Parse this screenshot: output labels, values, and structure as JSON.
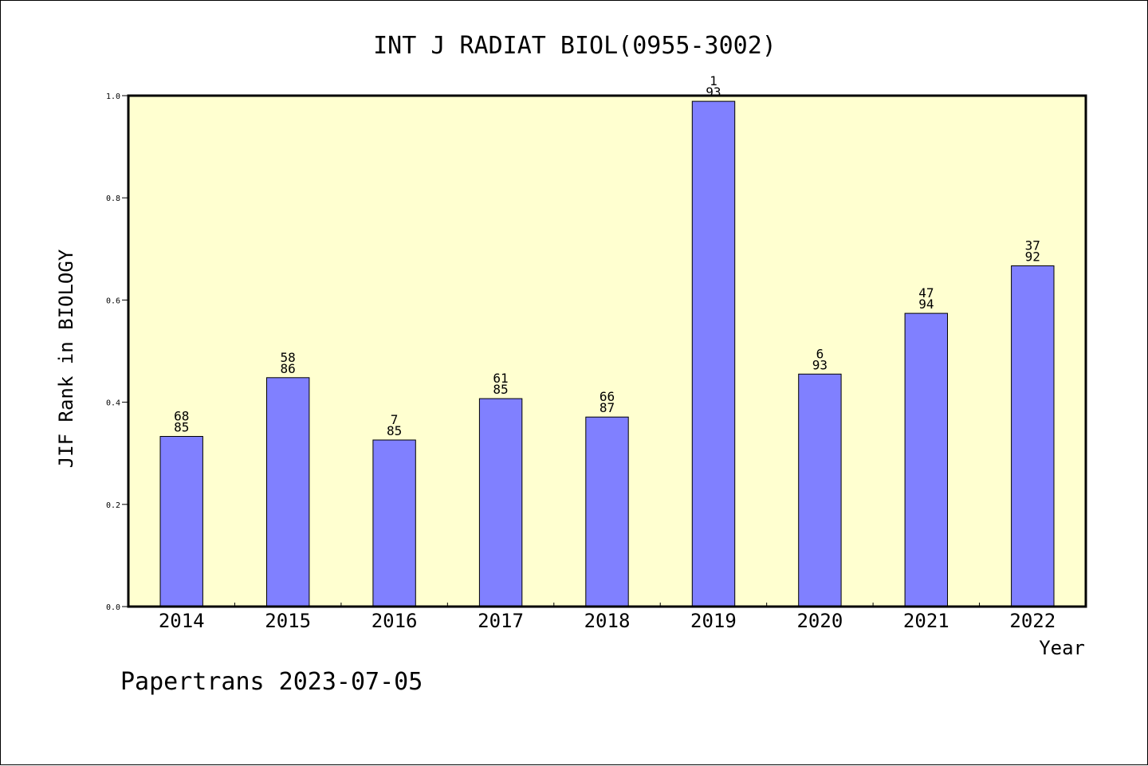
{
  "chart_data": {
    "type": "bar",
    "title": "INT J RADIAT BIOL(0955-3002)",
    "xlabel": "Year",
    "ylabel": "JIF Rank in BIOLOGY",
    "categories": [
      "2014",
      "2015",
      "2016",
      "2017",
      "2018",
      "2019",
      "2020",
      "2021",
      "2022"
    ],
    "values": [
      0.333,
      0.448,
      0.326,
      0.407,
      0.371,
      0.989,
      0.455,
      0.574,
      0.667
    ],
    "rank_labels": [
      {
        "rank": "68",
        "total": "85"
      },
      {
        "rank": "58",
        "total": "86"
      },
      {
        "rank": "7",
        "total": "85"
      },
      {
        "rank": "61",
        "total": "85"
      },
      {
        "rank": "66",
        "total": "87"
      },
      {
        "rank": "1",
        "total": "93"
      },
      {
        "rank": "6",
        "total": "93"
      },
      {
        "rank": "47",
        "total": "94"
      },
      {
        "rank": "37",
        "total": "92"
      }
    ],
    "ylim": [
      0,
      1.0
    ],
    "yticks": [
      "0.0",
      "0.2",
      "0.4",
      "0.6",
      "0.8",
      "1.0"
    ],
    "grid": false,
    "plot_background": "#ffffd0",
    "bar_color": "#8080ff"
  },
  "footer": "Papertrans 2023-07-05"
}
